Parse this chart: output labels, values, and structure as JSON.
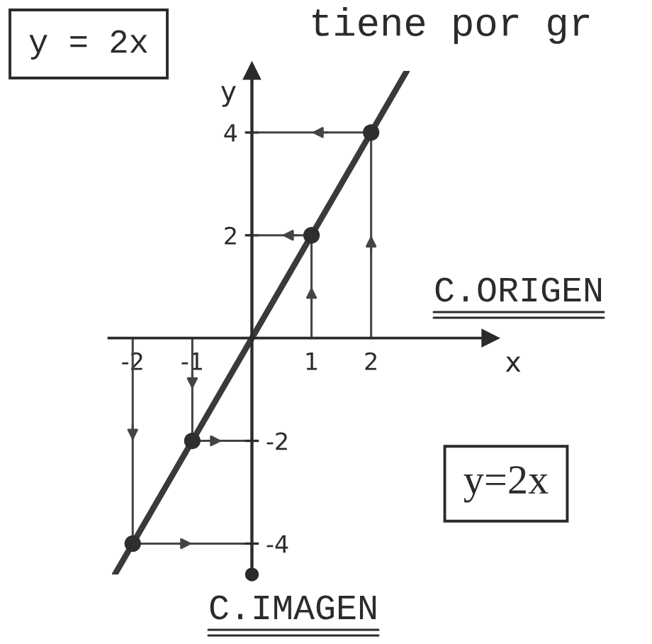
{
  "chart_data": {
    "type": "line",
    "xlabel": "x",
    "ylabel": "y",
    "annotations": [
      "y = 2x",
      "tiene por gr",
      "C.ORIGEN",
      "y=2x",
      "C.IMAGEN"
    ],
    "xlim": [
      -2.4,
      4.0
    ],
    "ylim": [
      -4.6,
      5.2
    ],
    "xticks": [
      -2,
      -1,
      1,
      2
    ],
    "yticks": [
      2,
      4
    ],
    "y2lim": [
      -4.6,
      5.2
    ],
    "y2ticks": [
      -4,
      -2
    ],
    "series": [
      {
        "color": "#3a3a3a",
        "x": [
          -2.3,
          2.6
        ],
        "values": [
          -4.6,
          5.2
        ]
      },
      {
        "type": "line",
        "color": "#444444",
        "x": [
          2,
          2,
          0
        ],
        "values": [
          0,
          4,
          4
        ]
      },
      {
        "type": "line",
        "color": "#444444",
        "x": [
          1,
          1,
          0
        ],
        "values": [
          0,
          2,
          2
        ]
      },
      {
        "type": "line",
        "color": "#444444",
        "x": [
          -1,
          -1,
          0
        ],
        "values": [
          0,
          -2,
          -2
        ]
      },
      {
        "type": "line",
        "color": "#444444",
        "x": [
          -2,
          -2,
          0
        ],
        "values": [
          0,
          -4,
          -4
        ]
      },
      {
        "type": "scatter",
        "color": "#2e2e2e",
        "x": [
          -2,
          -1,
          1,
          2
        ],
        "values": [
          -4,
          -2,
          2,
          4
        ],
        "marker": "circle"
      }
    ]
  }
}
